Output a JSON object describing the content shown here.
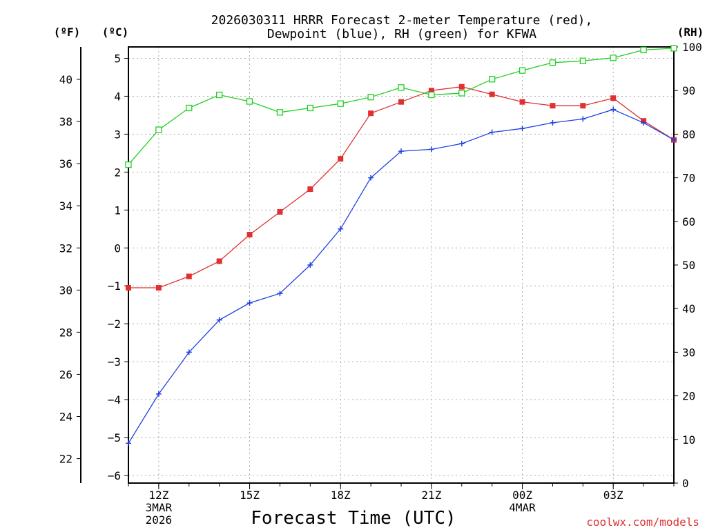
{
  "chart_data": {
    "type": "line",
    "title_lines": [
      "2026030311 HRRR Forecast 2-meter Temperature (red),",
      "Dewpoint (blue), RH (green) for KFWA"
    ],
    "xlabel": "Forecast Time (UTC)",
    "credit": "coolwx.com/models",
    "x_range": [
      11,
      29
    ],
    "x_ticks": [
      {
        "hour": 12,
        "lines": [
          "12Z",
          "3MAR",
          "2026"
        ]
      },
      {
        "hour": 15,
        "lines": [
          "15Z"
        ]
      },
      {
        "hour": 18,
        "lines": [
          "18Z"
        ]
      },
      {
        "hour": 21,
        "lines": [
          "21Z"
        ]
      },
      {
        "hour": 24,
        "lines": [
          "00Z",
          "4MAR"
        ]
      },
      {
        "hour": 27,
        "lines": [
          "03Z"
        ]
      }
    ],
    "left_c_axis": {
      "unit_label": "(ºC)",
      "range": [
        -6.2,
        5.3
      ],
      "ticks": [
        -6,
        -5,
        -4,
        -3,
        -2,
        -1,
        0,
        1,
        2,
        3,
        4,
        5
      ]
    },
    "left_f_axis": {
      "unit_label": "(ºF)",
      "range": [
        20.84,
        41.54
      ],
      "ticks": [
        22,
        24,
        26,
        28,
        30,
        32,
        34,
        36,
        38,
        40
      ]
    },
    "right_axis": {
      "unit_label": "(RH)",
      "range": [
        0,
        100
      ],
      "ticks": [
        0,
        10,
        20,
        30,
        40,
        50,
        60,
        70,
        80,
        90,
        100
      ]
    },
    "hours": [
      11,
      12,
      13,
      14,
      15,
      16,
      17,
      18,
      19,
      20,
      21,
      22,
      23,
      24,
      25,
      26,
      27,
      28,
      29
    ],
    "series": [
      {
        "name": "Temperature",
        "unit": "C",
        "color": "#e03030",
        "marker": "filled-square",
        "values": [
          -1.05,
          -1.05,
          -0.75,
          -0.35,
          0.35,
          0.95,
          1.55,
          2.35,
          3.55,
          3.85,
          4.15,
          4.25,
          4.05,
          3.85,
          3.75,
          3.75,
          3.95,
          3.35,
          2.85
        ]
      },
      {
        "name": "Dewpoint",
        "unit": "C",
        "color": "#2040e0",
        "marker": "plus",
        "values": [
          -5.15,
          -3.85,
          -2.75,
          -1.9,
          -1.45,
          -1.2,
          -0.45,
          0.5,
          1.85,
          2.55,
          2.6,
          2.75,
          3.05,
          3.15,
          3.3,
          3.4,
          3.65,
          3.3,
          2.85
        ]
      },
      {
        "name": "RH",
        "unit": "%",
        "color": "#20d020",
        "marker": "open-square",
        "values": [
          73,
          81,
          86,
          89,
          87.5,
          85,
          86,
          87,
          88.5,
          90.7,
          89,
          89.4,
          92.6,
          94.6,
          96.4,
          96.8,
          97.5,
          99.3,
          99.7
        ]
      }
    ]
  }
}
